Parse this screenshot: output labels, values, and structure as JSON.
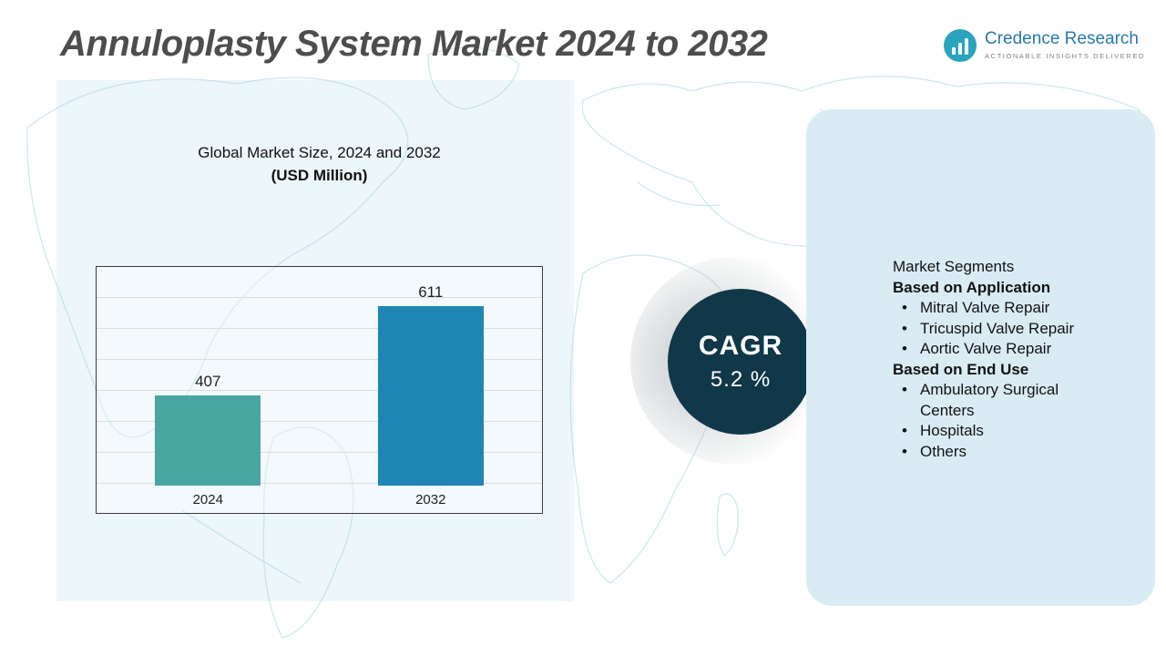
{
  "title": "Annuloplasty System Market 2024 to 2032",
  "logo": {
    "name": "Credence Research",
    "tagline": "Actionable Insights Delivered"
  },
  "chart": {
    "heading_line1": "Global Market Size, 2024 and 2032",
    "heading_line2": "(USD Million)"
  },
  "chart_data": {
    "type": "bar",
    "categories": [
      "2024",
      "2032"
    ],
    "values": [
      407,
      611
    ],
    "title": "Global Market Size, 2024 and 2032 (USD Million)",
    "xlabel": "",
    "ylabel": "",
    "ylim": [
      200,
      700
    ],
    "grid": true,
    "legend": false,
    "colors": [
      "#49a5a2",
      "#1e86b5"
    ]
  },
  "cagr": {
    "label": "CAGR",
    "value": "5.2 %"
  },
  "segments": {
    "heading": "Market Segments",
    "groups": [
      {
        "title": "Based on Application",
        "items": [
          "Mitral Valve Repair",
          "Tricuspid Valve Repair",
          "Aortic Valve Repair"
        ]
      },
      {
        "title": "Based on End Use",
        "items": [
          "Ambulatory Surgical Centers",
          "Hospitals",
          "Others"
        ]
      }
    ]
  },
  "colors": {
    "bar_2024": "#49a5a2",
    "bar_2032": "#1e86b5",
    "cagr_circle": "#103849",
    "panel_bg": "#d9ecf4",
    "logo_icon": "#2aa4bc",
    "logo_text": "#2879a8",
    "title_text": "#4d4d4d"
  }
}
